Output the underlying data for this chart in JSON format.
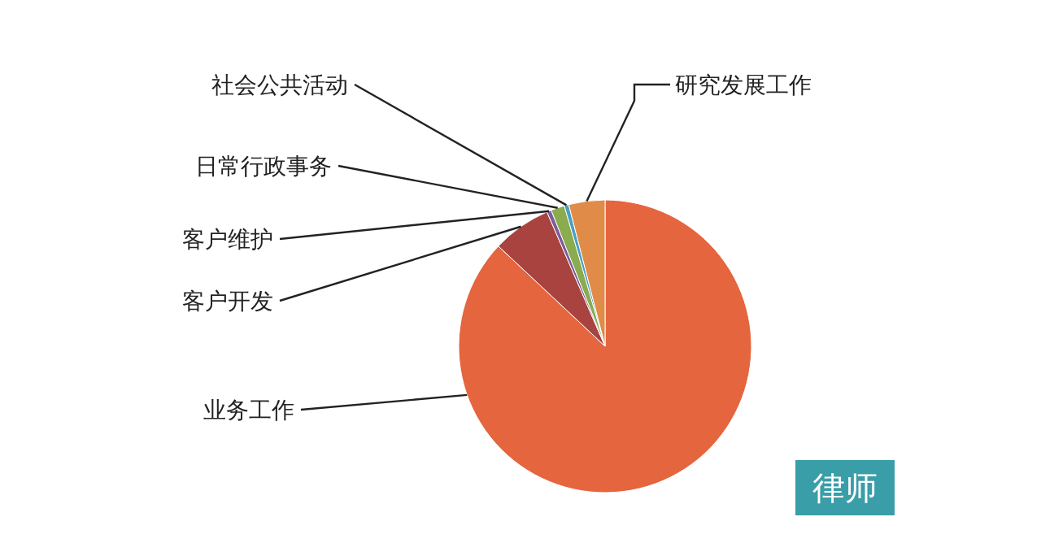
{
  "chart_data": {
    "type": "pie",
    "title": "律师",
    "categories": [
      "业务工作",
      "客户开发",
      "客户维护",
      "日常行政事务",
      "社会公共活动",
      "研究发展工作"
    ],
    "values": [
      87,
      6.5,
      0.5,
      1.5,
      0.5,
      4
    ],
    "colors": [
      "#e5653e",
      "#a8433f",
      "#7d5c9a",
      "#8bab4f",
      "#4a9fc0",
      "#e08c48"
    ]
  }
}
